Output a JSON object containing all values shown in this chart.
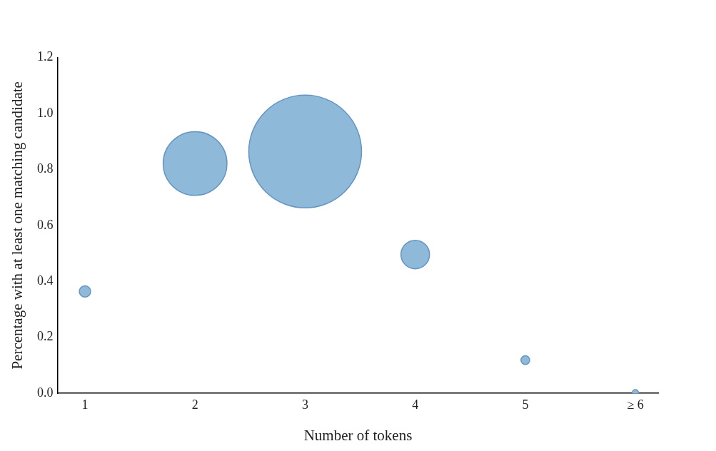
{
  "chart_data": {
    "type": "bubble",
    "xlabel": "Number of tokens",
    "ylabel": "Percentage with at least one matching candidate",
    "categories": [
      "1",
      "2",
      "3",
      "4",
      "5",
      "≥ 6"
    ],
    "series": [
      {
        "color": "#8fb9d9",
        "values": [
          0.364,
          0.821,
          0.864,
          0.496,
          0.119,
          0.002
        ],
        "sizes": [
          0.01,
          0.32,
          1,
          0.064,
          0.006,
          0.003
        ]
      }
    ],
    "ylim": [
      0,
      1.2
    ],
    "yticks": [
      {
        "value": 0,
        "label": "0.0"
      },
      {
        "value": 0.2,
        "label": "0.2"
      },
      {
        "value": 0.4,
        "label": "0.4"
      },
      {
        "value": 0.6,
        "label": "0.6"
      },
      {
        "value": 0.8,
        "label": "0.8"
      },
      {
        "value": 1,
        "label": "1.0"
      },
      {
        "value": 1.2,
        "label": "1.2"
      }
    ]
  }
}
